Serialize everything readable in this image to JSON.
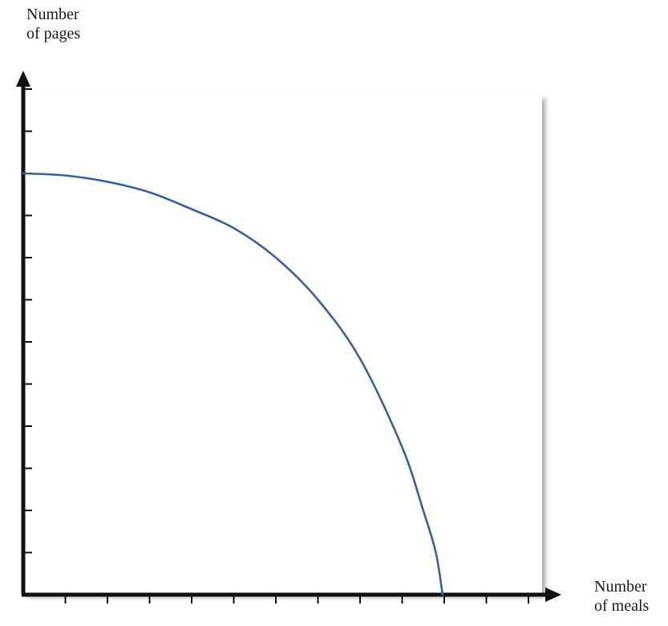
{
  "chart_data": {
    "type": "line",
    "title": "",
    "ylabel_lines": [
      "Number",
      "of pages"
    ],
    "xlabel_lines": [
      "Number",
      "of meals"
    ],
    "x_ticks": 12,
    "y_ticks": 12,
    "xlim": [
      0,
      12.5
    ],
    "ylim": [
      0,
      11.5
    ],
    "grid": false,
    "series": [
      {
        "color": "#3a5fa0",
        "x": [
          0,
          1,
          2,
          3,
          4,
          5,
          6,
          7,
          8,
          9,
          9.5,
          9.8,
          9.96
        ],
        "y": [
          10,
          9.95,
          9.8,
          9.55,
          9.15,
          8.7,
          8.0,
          7.0,
          5.6,
          3.5,
          2.0,
          1.0,
          0
        ]
      }
    ]
  }
}
